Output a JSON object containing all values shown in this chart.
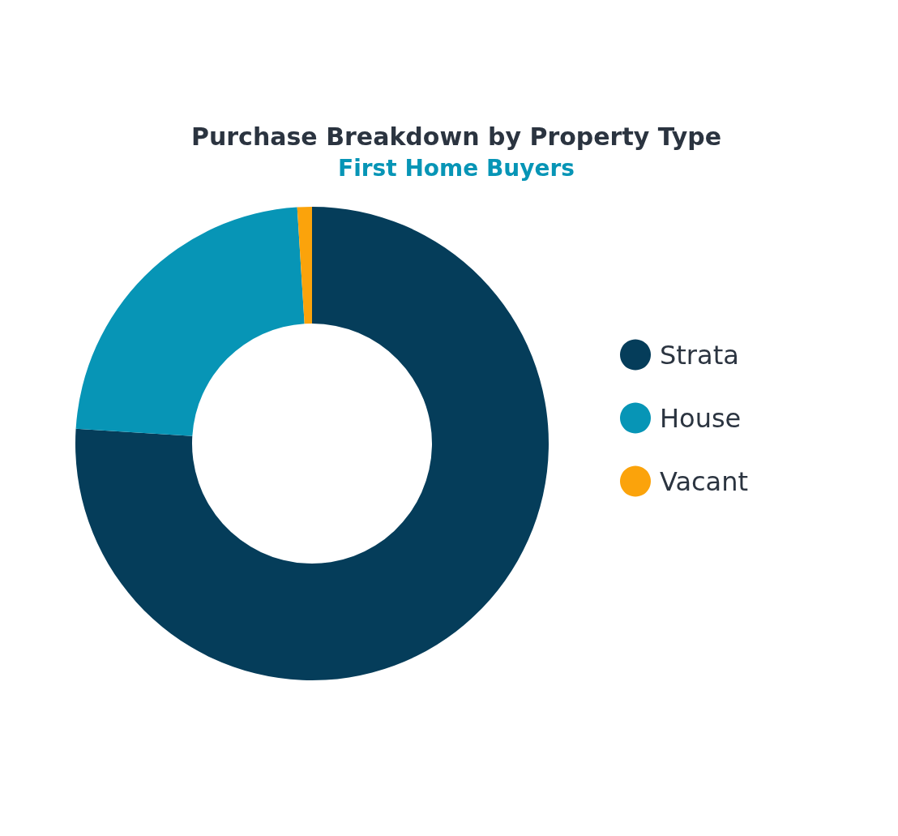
{
  "chart_data": {
    "type": "donut",
    "title": "Purchase Breakdown by Property Type",
    "subtitle": "First Home Buyers",
    "categories": [
      "Strata",
      "House",
      "Vacant"
    ],
    "values": [
      76,
      23,
      1
    ],
    "colors": [
      "#053d5a",
      "#0795b6",
      "#fba30b"
    ],
    "legend": "right"
  }
}
